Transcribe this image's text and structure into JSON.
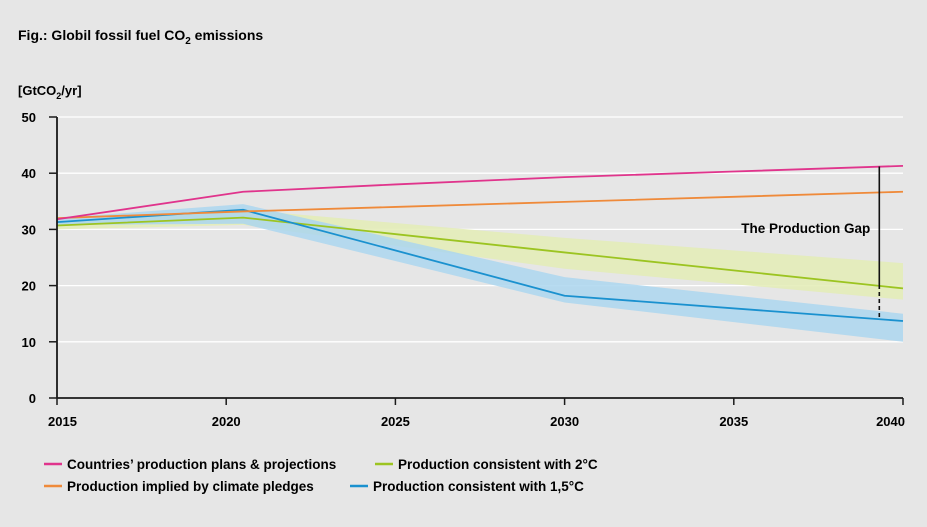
{
  "header": {
    "title_prefix": "Fig.: Globil fossil fuel CO",
    "title_sub": "2",
    "title_suffix": " emissions"
  },
  "chart_data": {
    "type": "line",
    "title": "Fig.: Globil fossil fuel CO2 emissions",
    "ylabel": "[GtCO2/yr]",
    "ylabel_parts": {
      "prefix": "[GtCO",
      "sub": "2",
      "suffix": "/yr]"
    },
    "xlim": [
      2015,
      2040
    ],
    "ylim": [
      0,
      50
    ],
    "x_ticks": [
      2015,
      2020,
      2025,
      2030,
      2035,
      2040
    ],
    "x_tick_labels": [
      "2015",
      "2020",
      "2025",
      "2030",
      "2035",
      "2040"
    ],
    "y_ticks": [
      0,
      10,
      20,
      30,
      40,
      50
    ],
    "y_tick_labels": [
      "0",
      "10",
      "20",
      "30",
      "40",
      "50"
    ],
    "grid": "horizontal",
    "legend_position": "bottom",
    "series": [
      {
        "name": "Countries’ production plans & projections",
        "color": "#e0348c",
        "x": [
          2015,
          2020.5,
          2025,
          2030,
          2035,
          2040
        ],
        "y": [
          31.8,
          36.7,
          38.0,
          39.3,
          40.3,
          41.3
        ]
      },
      {
        "name": "Production implied by climate pledges",
        "color": "#ef8a3a",
        "x": [
          2015,
          2020.5,
          2025,
          2030,
          2035,
          2040
        ],
        "y": [
          32.0,
          33.2,
          34.0,
          34.9,
          35.8,
          36.7
        ]
      },
      {
        "name": "Production consistent with 2°C",
        "color": "#9cc421",
        "x": [
          2015,
          2020.5,
          2030,
          2040
        ],
        "y": [
          30.7,
          32.1,
          25.9,
          19.5
        ],
        "band_upper": [
          31.5,
          33.5,
          28.5,
          24.0
        ],
        "band_lower": [
          30.0,
          30.8,
          23.0,
          17.5
        ],
        "band_color": "#e3ecb5"
      },
      {
        "name": "Production consistent with 1,5°C",
        "color": "#1a91cf",
        "x": [
          2015,
          2020.5,
          2030,
          2040
        ],
        "y": [
          31.3,
          33.5,
          18.2,
          13.7
        ],
        "band_upper": [
          32.0,
          34.5,
          21.5,
          15.0
        ],
        "band_lower": [
          30.8,
          31.0,
          17.0,
          10.0
        ],
        "band_color": "#abd6ef"
      }
    ],
    "annotation": {
      "text": "The Production Gap",
      "x": 2039.3,
      "y_top": 41.2,
      "y_solid_bottom": 20.1,
      "y_dashed_bottom": 14.0
    }
  }
}
